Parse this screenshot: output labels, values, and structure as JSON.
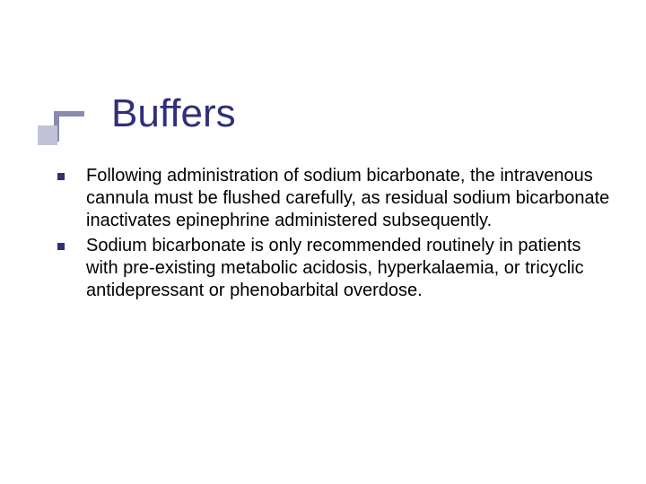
{
  "slide": {
    "title": "Buffers",
    "title_color": "#2f2f7a",
    "title_fontsize": 44,
    "decoration": {
      "bar_color": "#8a8ab0",
      "square_color": "#c2c2d8"
    },
    "bullets": {
      "marker_color": "#2f2f7a",
      "items": [
        "Following administration of sodium bicarbonate, the intravenous cannula must be flushed carefully, as residual sodium bicarbonate inactivates epinephrine administered subsequently.",
        "Sodium bicarbonate is only recommended routinely in patients with pre-existing metabolic acidosis, hyperkalaemia, or tricyclic antidepressant or phenobarbital overdose."
      ]
    },
    "body_fontsize": 20,
    "background_color": "#ffffff"
  }
}
